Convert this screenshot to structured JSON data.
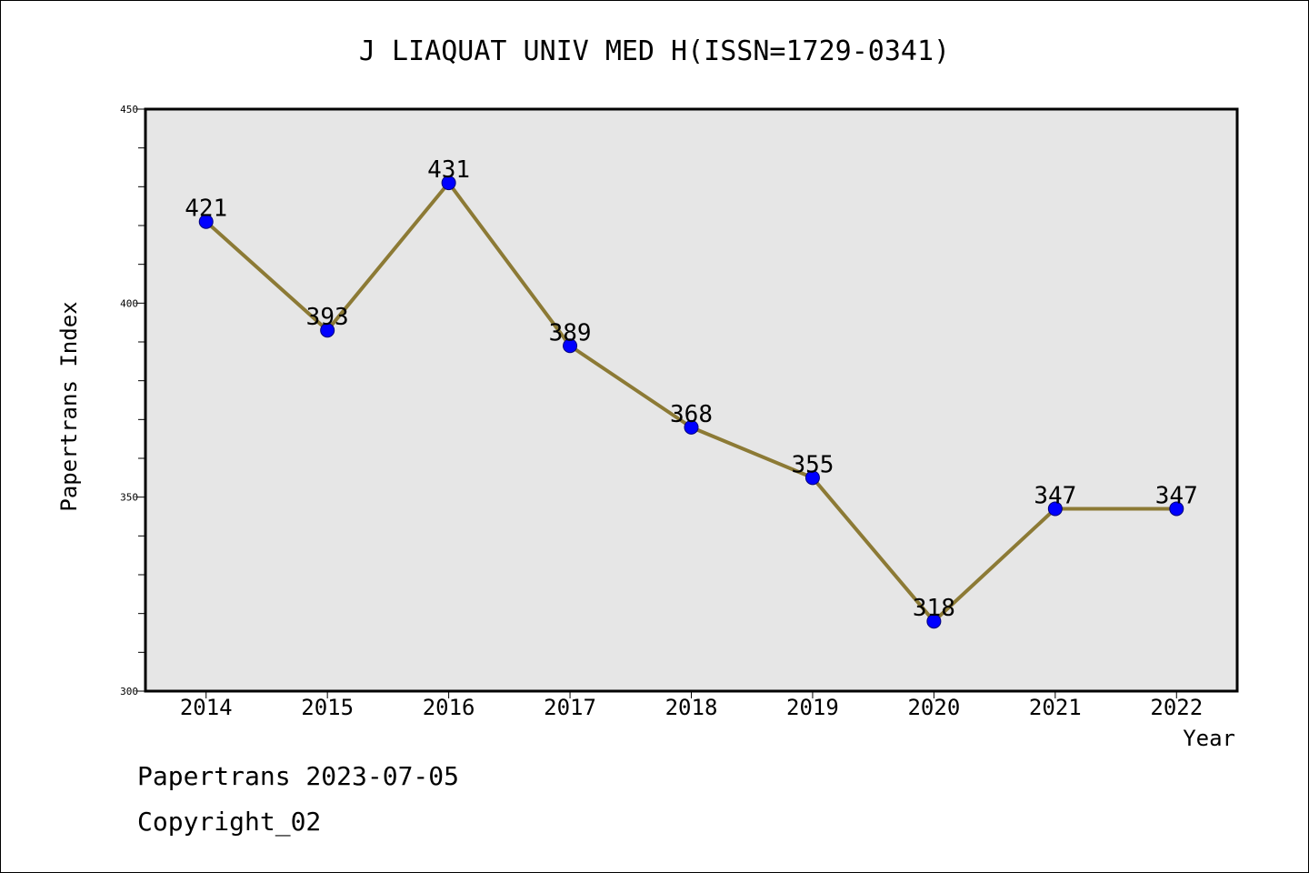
{
  "chart_data": {
    "type": "line",
    "title": "J LIAQUAT UNIV MED H(ISSN=1729-0341)",
    "xlabel": "Year",
    "ylabel": "Papertrans Index",
    "categories": [
      "2014",
      "2015",
      "2016",
      "2017",
      "2018",
      "2019",
      "2020",
      "2021",
      "2022"
    ],
    "values": [
      421,
      393,
      431,
      389,
      368,
      355,
      318,
      347,
      347
    ],
    "data_labels": [
      "421",
      "393",
      "431",
      "389",
      "368",
      "355",
      "318",
      "347",
      "347"
    ],
    "ylim": [
      300,
      450
    ],
    "y_ticks": [
      300,
      350,
      400,
      450
    ],
    "y_tick_labels": [
      "300",
      "350",
      "400",
      "450"
    ],
    "y_minor_step": 10,
    "grid": false,
    "legend": "none",
    "colors": {
      "line": "#8c7a35",
      "marker": "#0000ff",
      "marker_edge": "#00007a",
      "plot_background": "#e6e6e6"
    }
  },
  "footer": {
    "line1": "Papertrans 2023-07-05",
    "line2": "Copyright_02"
  }
}
